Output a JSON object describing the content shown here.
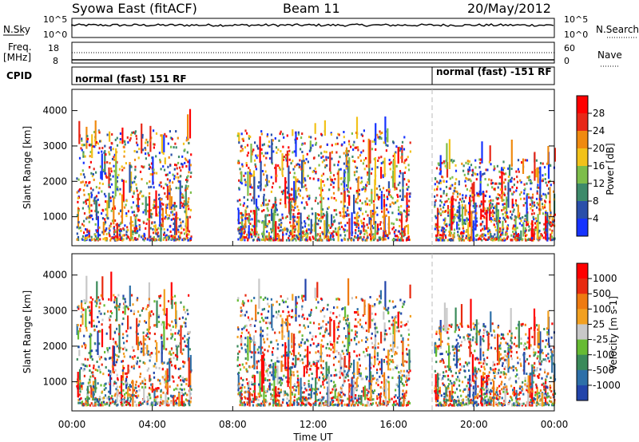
{
  "header": {
    "station": "Syowa East (fitACF)",
    "beam": "Beam 11",
    "date": "20/May/2012"
  },
  "nsky_panel": {
    "left_label": "N.Sky",
    "left_ticks": [
      "10^5",
      "10^0"
    ],
    "right_label": "N.Search",
    "right_ticks": [
      "10^5",
      "10^0"
    ]
  },
  "freq_panel": {
    "left_label_1": "Freq.",
    "left_label_2": "[MHz]",
    "left_ticks": [
      "18",
      "8"
    ],
    "right_label": "Nave",
    "right_ticks": [
      "60",
      "0"
    ]
  },
  "cpid_panel": {
    "label": "CPID",
    "mode_1": "normal (fast) 151 RF",
    "mode_2": "normal (fast) -151 RF"
  },
  "x_axis": {
    "label": "Time UT",
    "ticks": [
      "00:00",
      "04:00",
      "08:00",
      "12:00",
      "16:00",
      "20:00",
      "00:00"
    ]
  },
  "chart_data": [
    {
      "type": "heatmap",
      "quantity": "power",
      "ylabel": "Slant Range [km]",
      "yticks": [
        1000,
        2000,
        3000,
        4000
      ],
      "ylim": [
        180,
        4600
      ],
      "colorbar": {
        "label": "Power [dB]",
        "ticks": [
          "4",
          "8",
          "12",
          "16",
          "20",
          "24",
          "28"
        ],
        "colors": [
          "#1633ff",
          "#2a4faa",
          "#3d8a6a",
          "#7dbe4a",
          "#f2c21a",
          "#f08a10",
          "#e82818",
          "#ff0000"
        ]
      },
      "scatter_blocks": [
        {
          "t0": 0.2,
          "t1": 5.9,
          "r0": 300,
          "r1": 3400
        },
        {
          "t0": 8.2,
          "t1": 16.8,
          "r0": 300,
          "r1": 3400
        },
        {
          "t0": 18.0,
          "t1": 24.0,
          "r0": 300,
          "r1": 2600
        }
      ]
    },
    {
      "type": "heatmap",
      "quantity": "velocity",
      "ylabel": "Slant Range [km]",
      "yticks": [
        1000,
        2000,
        3000,
        4000
      ],
      "ylim": [
        180,
        4600
      ],
      "colorbar": {
        "label": "Velocity [m s-1]",
        "ticks": [
          "1000",
          "500",
          "100",
          "25",
          "-25",
          "-100",
          "-500",
          "-1000"
        ],
        "colors": [
          "#2244aa",
          "#2d6fa8",
          "#3a8a5a",
          "#66bb33",
          "#c8c8c8",
          "#f2a020",
          "#ee7a10",
          "#e82a10",
          "#ff0000"
        ]
      },
      "scatter_blocks": [
        {
          "t0": 0.2,
          "t1": 5.9,
          "r0": 300,
          "r1": 3400
        },
        {
          "t0": 8.2,
          "t1": 16.8,
          "r0": 300,
          "r1": 3400
        },
        {
          "t0": 18.0,
          "t1": 24.0,
          "r0": 300,
          "r1": 2600
        }
      ]
    }
  ]
}
